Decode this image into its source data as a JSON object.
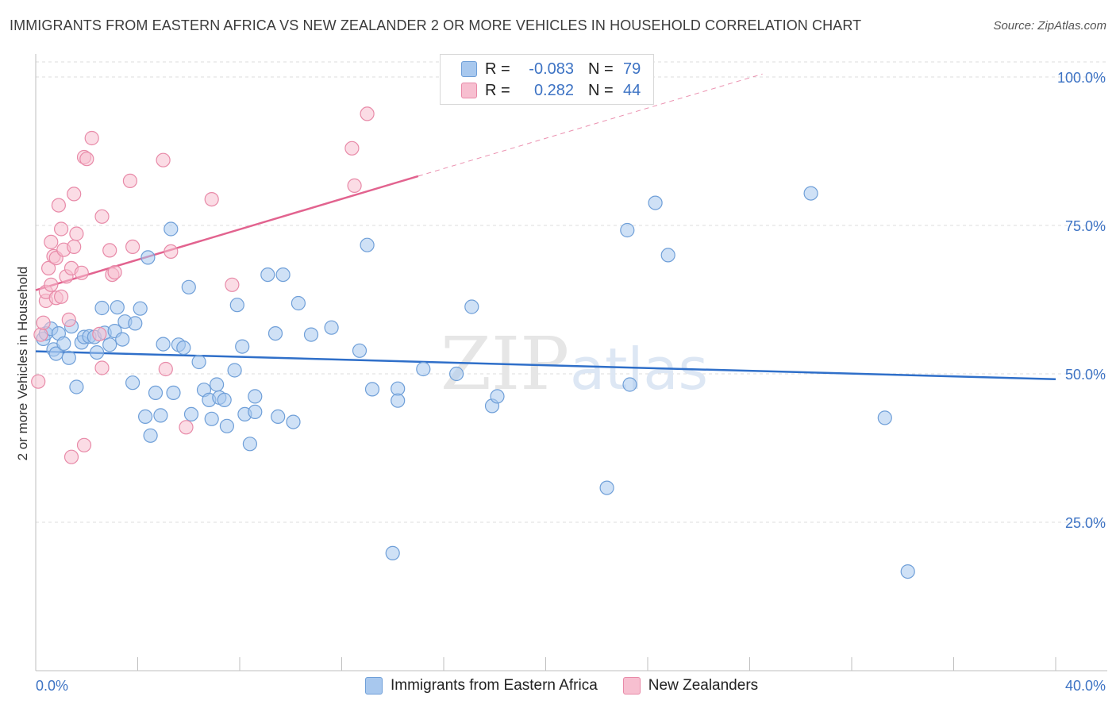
{
  "title": "IMMIGRANTS FROM EASTERN AFRICA VS NEW ZEALANDER 2 OR MORE VEHICLES IN HOUSEHOLD CORRELATION CHART",
  "source": "Source: ZipAtlas.com",
  "watermark": {
    "zip": "ZIP",
    "atlas": "atlas"
  },
  "legend_stats": [
    {
      "r_label": "R =",
      "r_value": "-0.083",
      "n_label": "N =",
      "n_value": "79",
      "color": "#a8c8ee",
      "border": "#6f9fd8"
    },
    {
      "r_label": "R =",
      "r_value": "0.282",
      "n_label": "N =",
      "n_value": "44",
      "color": "#f7bfd0",
      "border": "#e88aa8"
    }
  ],
  "legend_series": [
    {
      "label": "Immigrants from Eastern Africa",
      "color": "#a8c8ee",
      "border": "#6f9fd8"
    },
    {
      "label": "New Zealanders",
      "color": "#f7bfd0",
      "border": "#e88aa8"
    }
  ],
  "chart_data": {
    "type": "scatter",
    "title": "IMMIGRANTS FROM EASTERN AFRICA VS NEW ZEALANDER 2 OR MORE VEHICLES IN HOUSEHOLD CORRELATION CHART",
    "xlabel": "",
    "ylabel": "2 or more Vehicles in Household",
    "xlim": [
      0,
      40
    ],
    "ylim": [
      0,
      105
    ],
    "x_tick_labels": [
      "0.0%",
      "40.0%"
    ],
    "y_ticks": [
      25,
      50,
      75,
      100
    ],
    "y_tick_labels": [
      "25.0%",
      "50.0%",
      "75.0%",
      "100.0%"
    ],
    "grid": true,
    "series": [
      {
        "name": "Immigrants from Eastern Africa",
        "color": "#a8c8ee",
        "stroke": "#6f9fd8",
        "trend": {
          "x": [
            0,
            40
          ],
          "y": [
            53.8,
            49.1
          ],
          "color": "#2f6fc9"
        },
        "points": [
          [
            0.3,
            55.9
          ],
          [
            0.4,
            56.8
          ],
          [
            0.6,
            57.6
          ],
          [
            0.7,
            54.1
          ],
          [
            0.8,
            53.4
          ],
          [
            0.9,
            56.8
          ],
          [
            1.1,
            55.1
          ],
          [
            1.3,
            52.7
          ],
          [
            1.4,
            58.0
          ],
          [
            1.6,
            47.8
          ],
          [
            1.8,
            55.3
          ],
          [
            1.9,
            56.2
          ],
          [
            2.1,
            56.3
          ],
          [
            2.3,
            56.2
          ],
          [
            2.4,
            53.6
          ],
          [
            2.6,
            61.1
          ],
          [
            2.7,
            56.9
          ],
          [
            2.9,
            54.9
          ],
          [
            3.1,
            57.2
          ],
          [
            3.2,
            61.2
          ],
          [
            3.4,
            55.8
          ],
          [
            3.5,
            58.8
          ],
          [
            3.8,
            48.5
          ],
          [
            3.9,
            58.5
          ],
          [
            4.1,
            61.0
          ],
          [
            4.3,
            42.8
          ],
          [
            4.4,
            69.6
          ],
          [
            4.5,
            39.6
          ],
          [
            4.7,
            46.8
          ],
          [
            4.9,
            43.0
          ],
          [
            5.0,
            55.0
          ],
          [
            5.3,
            74.4
          ],
          [
            5.4,
            46.8
          ],
          [
            5.6,
            54.9
          ],
          [
            5.8,
            54.4
          ],
          [
            6.0,
            64.6
          ],
          [
            6.1,
            43.2
          ],
          [
            6.4,
            52.0
          ],
          [
            6.6,
            47.3
          ],
          [
            6.8,
            45.6
          ],
          [
            6.9,
            42.4
          ],
          [
            7.1,
            48.2
          ],
          [
            7.2,
            46.0
          ],
          [
            7.4,
            45.6
          ],
          [
            7.5,
            41.2
          ],
          [
            7.8,
            50.6
          ],
          [
            7.9,
            61.6
          ],
          [
            8.1,
            54.6
          ],
          [
            8.2,
            43.2
          ],
          [
            8.4,
            38.2
          ],
          [
            8.6,
            46.2
          ],
          [
            8.6,
            43.6
          ],
          [
            9.1,
            66.7
          ],
          [
            9.4,
            56.8
          ],
          [
            9.5,
            42.8
          ],
          [
            9.7,
            66.7
          ],
          [
            10.1,
            41.9
          ],
          [
            10.3,
            61.9
          ],
          [
            10.8,
            56.6
          ],
          [
            11.6,
            57.8
          ],
          [
            12.7,
            53.9
          ],
          [
            13.0,
            71.7
          ],
          [
            13.2,
            47.4
          ],
          [
            14.0,
            19.8
          ],
          [
            14.2,
            47.5
          ],
          [
            14.2,
            45.5
          ],
          [
            15.2,
            50.8
          ],
          [
            16.5,
            50.0
          ],
          [
            17.1,
            61.3
          ],
          [
            17.9,
            44.6
          ],
          [
            18.1,
            46.2
          ],
          [
            22.4,
            30.8
          ],
          [
            23.2,
            74.2
          ],
          [
            23.3,
            48.2
          ],
          [
            24.3,
            78.8
          ],
          [
            24.8,
            70.0
          ],
          [
            30.4,
            80.4
          ],
          [
            33.3,
            42.6
          ],
          [
            34.2,
            16.7
          ]
        ]
      },
      {
        "name": "New Zealanders",
        "color": "#f7bfd0",
        "stroke": "#e88aa8",
        "trend": {
          "x": [
            0,
            15
          ],
          "y": [
            64.1,
            83.3
          ],
          "color": "#e2638f",
          "dashed_to": {
            "x": 28.5,
            "y": 100.5
          }
        },
        "points": [
          [
            0.1,
            48.7
          ],
          [
            0.2,
            56.6
          ],
          [
            0.3,
            58.6
          ],
          [
            0.4,
            62.3
          ],
          [
            0.4,
            63.8
          ],
          [
            0.5,
            67.8
          ],
          [
            0.6,
            65.0
          ],
          [
            0.6,
            72.2
          ],
          [
            0.7,
            69.8
          ],
          [
            0.8,
            62.8
          ],
          [
            0.8,
            69.5
          ],
          [
            0.9,
            78.4
          ],
          [
            1.0,
            63.0
          ],
          [
            1.0,
            74.4
          ],
          [
            1.1,
            70.9
          ],
          [
            1.2,
            66.4
          ],
          [
            1.3,
            59.1
          ],
          [
            1.4,
            67.8
          ],
          [
            1.4,
            36.0
          ],
          [
            1.5,
            71.4
          ],
          [
            1.5,
            80.3
          ],
          [
            1.6,
            73.6
          ],
          [
            1.8,
            67.0
          ],
          [
            1.9,
            38.0
          ],
          [
            1.9,
            86.5
          ],
          [
            2.0,
            86.2
          ],
          [
            2.2,
            89.7
          ],
          [
            2.5,
            56.7
          ],
          [
            2.6,
            51.0
          ],
          [
            2.6,
            76.5
          ],
          [
            2.9,
            70.8
          ],
          [
            3.0,
            66.7
          ],
          [
            3.1,
            67.1
          ],
          [
            3.7,
            82.5
          ],
          [
            3.8,
            71.4
          ],
          [
            5.0,
            86.0
          ],
          [
            5.1,
            50.8
          ],
          [
            5.3,
            70.6
          ],
          [
            5.9,
            41.0
          ],
          [
            6.9,
            79.4
          ],
          [
            7.7,
            65.0
          ],
          [
            12.4,
            88.0
          ],
          [
            12.5,
            81.7
          ],
          [
            13.0,
            93.8
          ]
        ]
      }
    ]
  }
}
